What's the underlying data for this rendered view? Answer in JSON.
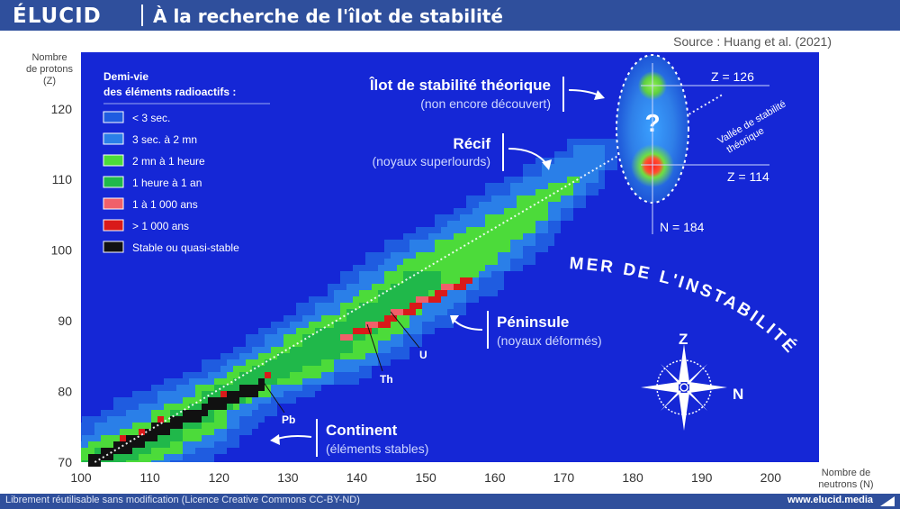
{
  "header": {
    "logo": "ÉLUCID",
    "title": "À la recherche de l'îlot de stabilité"
  },
  "source": "Source : Huang et al. (2021)",
  "axes": {
    "y_title_line1": "Nombre",
    "y_title_line2": "de protons",
    "y_title_line3": "(Z)",
    "x_title_line1": "Nombre de",
    "x_title_line2": "neutrons (N)"
  },
  "legend": {
    "title_line1": "Demi-vie",
    "title_line2": "des éléments radioactifs :",
    "items": [
      {
        "label": "< 3 sec.",
        "color": "#1f5ce0"
      },
      {
        "label": "3 sec. à 2 mn",
        "color": "#2a7fe8"
      },
      {
        "label": "2 mn à 1 heure",
        "color": "#4cdb3a"
      },
      {
        "label": "1 heure à 1 an",
        "color": "#20b84a"
      },
      {
        "label": "1 à 1 000 ans",
        "color": "#f0606a"
      },
      {
        "label": "> 1 000 ans",
        "color": "#d91a1a"
      },
      {
        "label": "Stable ou quasi-stable",
        "color": "#111111"
      }
    ]
  },
  "annotations": {
    "ilot_title": "Îlot de stabilité théorique",
    "ilot_sub": "(non encore découvert)",
    "recif_title": "Récif",
    "recif_sub": "(noyaux superlourds)",
    "peninsule_title": "Péninsule",
    "peninsule_sub": "(noyaux déformés)",
    "continent_title": "Continent",
    "continent_sub": "(éléments stables)",
    "mer": "MER DE L'INSTABILITÉ",
    "vallee_line1": "Vallée de stabilité",
    "vallee_line2": "théorique",
    "z126": "Z = 126",
    "z114": "Z = 114",
    "n184": "N = 184",
    "question": "?",
    "pb": "Pb",
    "th": "Th",
    "u": "U",
    "compass_n": "N",
    "compass_z": "Z"
  },
  "chart_data": {
    "type": "heatmap",
    "x_ticks": [
      100,
      110,
      120,
      130,
      140,
      150,
      160,
      170,
      180,
      190,
      200
    ],
    "y_ticks": [
      70,
      80,
      90,
      100,
      110,
      120
    ],
    "xlim": [
      100,
      207
    ],
    "ylim": [
      70,
      128
    ],
    "background_color": "#1527d6",
    "island": {
      "N": 184,
      "Z_values": [
        114,
        126
      ]
    },
    "valley_line": [
      [
        102,
        70
      ],
      [
        193,
        122
      ]
    ],
    "bands": [
      {
        "category": "< 3 sec.",
        "segments": [
          [
            103,
            70,
            4.2
          ],
          [
            115,
            76,
            4.2
          ],
          [
            125,
            82,
            3.0
          ],
          [
            138,
            88,
            4.2
          ],
          [
            150,
            96,
            4.2
          ],
          [
            162,
            104,
            3.5
          ],
          [
            175,
            114,
            2.0
          ]
        ]
      },
      {
        "category": "3 sec. à 2 mn",
        "segments": [
          [
            103,
            70,
            3.0
          ],
          [
            115,
            76,
            3.0
          ],
          [
            125,
            82,
            2.2
          ],
          [
            138,
            88,
            3.2
          ],
          [
            150,
            96,
            3.2
          ],
          [
            162,
            104,
            2.6
          ],
          [
            175,
            114,
            1.5
          ]
        ]
      },
      {
        "category": "2 mn à 1 heure",
        "segments": [
          [
            103,
            70,
            2.0
          ],
          [
            115,
            76,
            2.0
          ],
          [
            125,
            82,
            1.6
          ],
          [
            138,
            88,
            2.3
          ],
          [
            150,
            96,
            2.2
          ],
          [
            162,
            104,
            1.6
          ],
          [
            172,
            110,
            0.6
          ]
        ]
      },
      {
        "category": "1 heure à 1 an",
        "segments": [
          [
            103,
            70,
            1.2
          ],
          [
            115,
            76,
            1.2
          ],
          [
            125,
            82,
            1.0
          ],
          [
            138,
            88,
            1.4
          ],
          [
            150,
            96,
            1.3
          ]
        ]
      }
    ],
    "stable_segment": [
      [
        101,
        71
      ],
      [
        126,
        82
      ]
    ],
    "long_lived_segment": [
      [
        138,
        88
      ],
      [
        155,
        96
      ]
    ]
  }
}
